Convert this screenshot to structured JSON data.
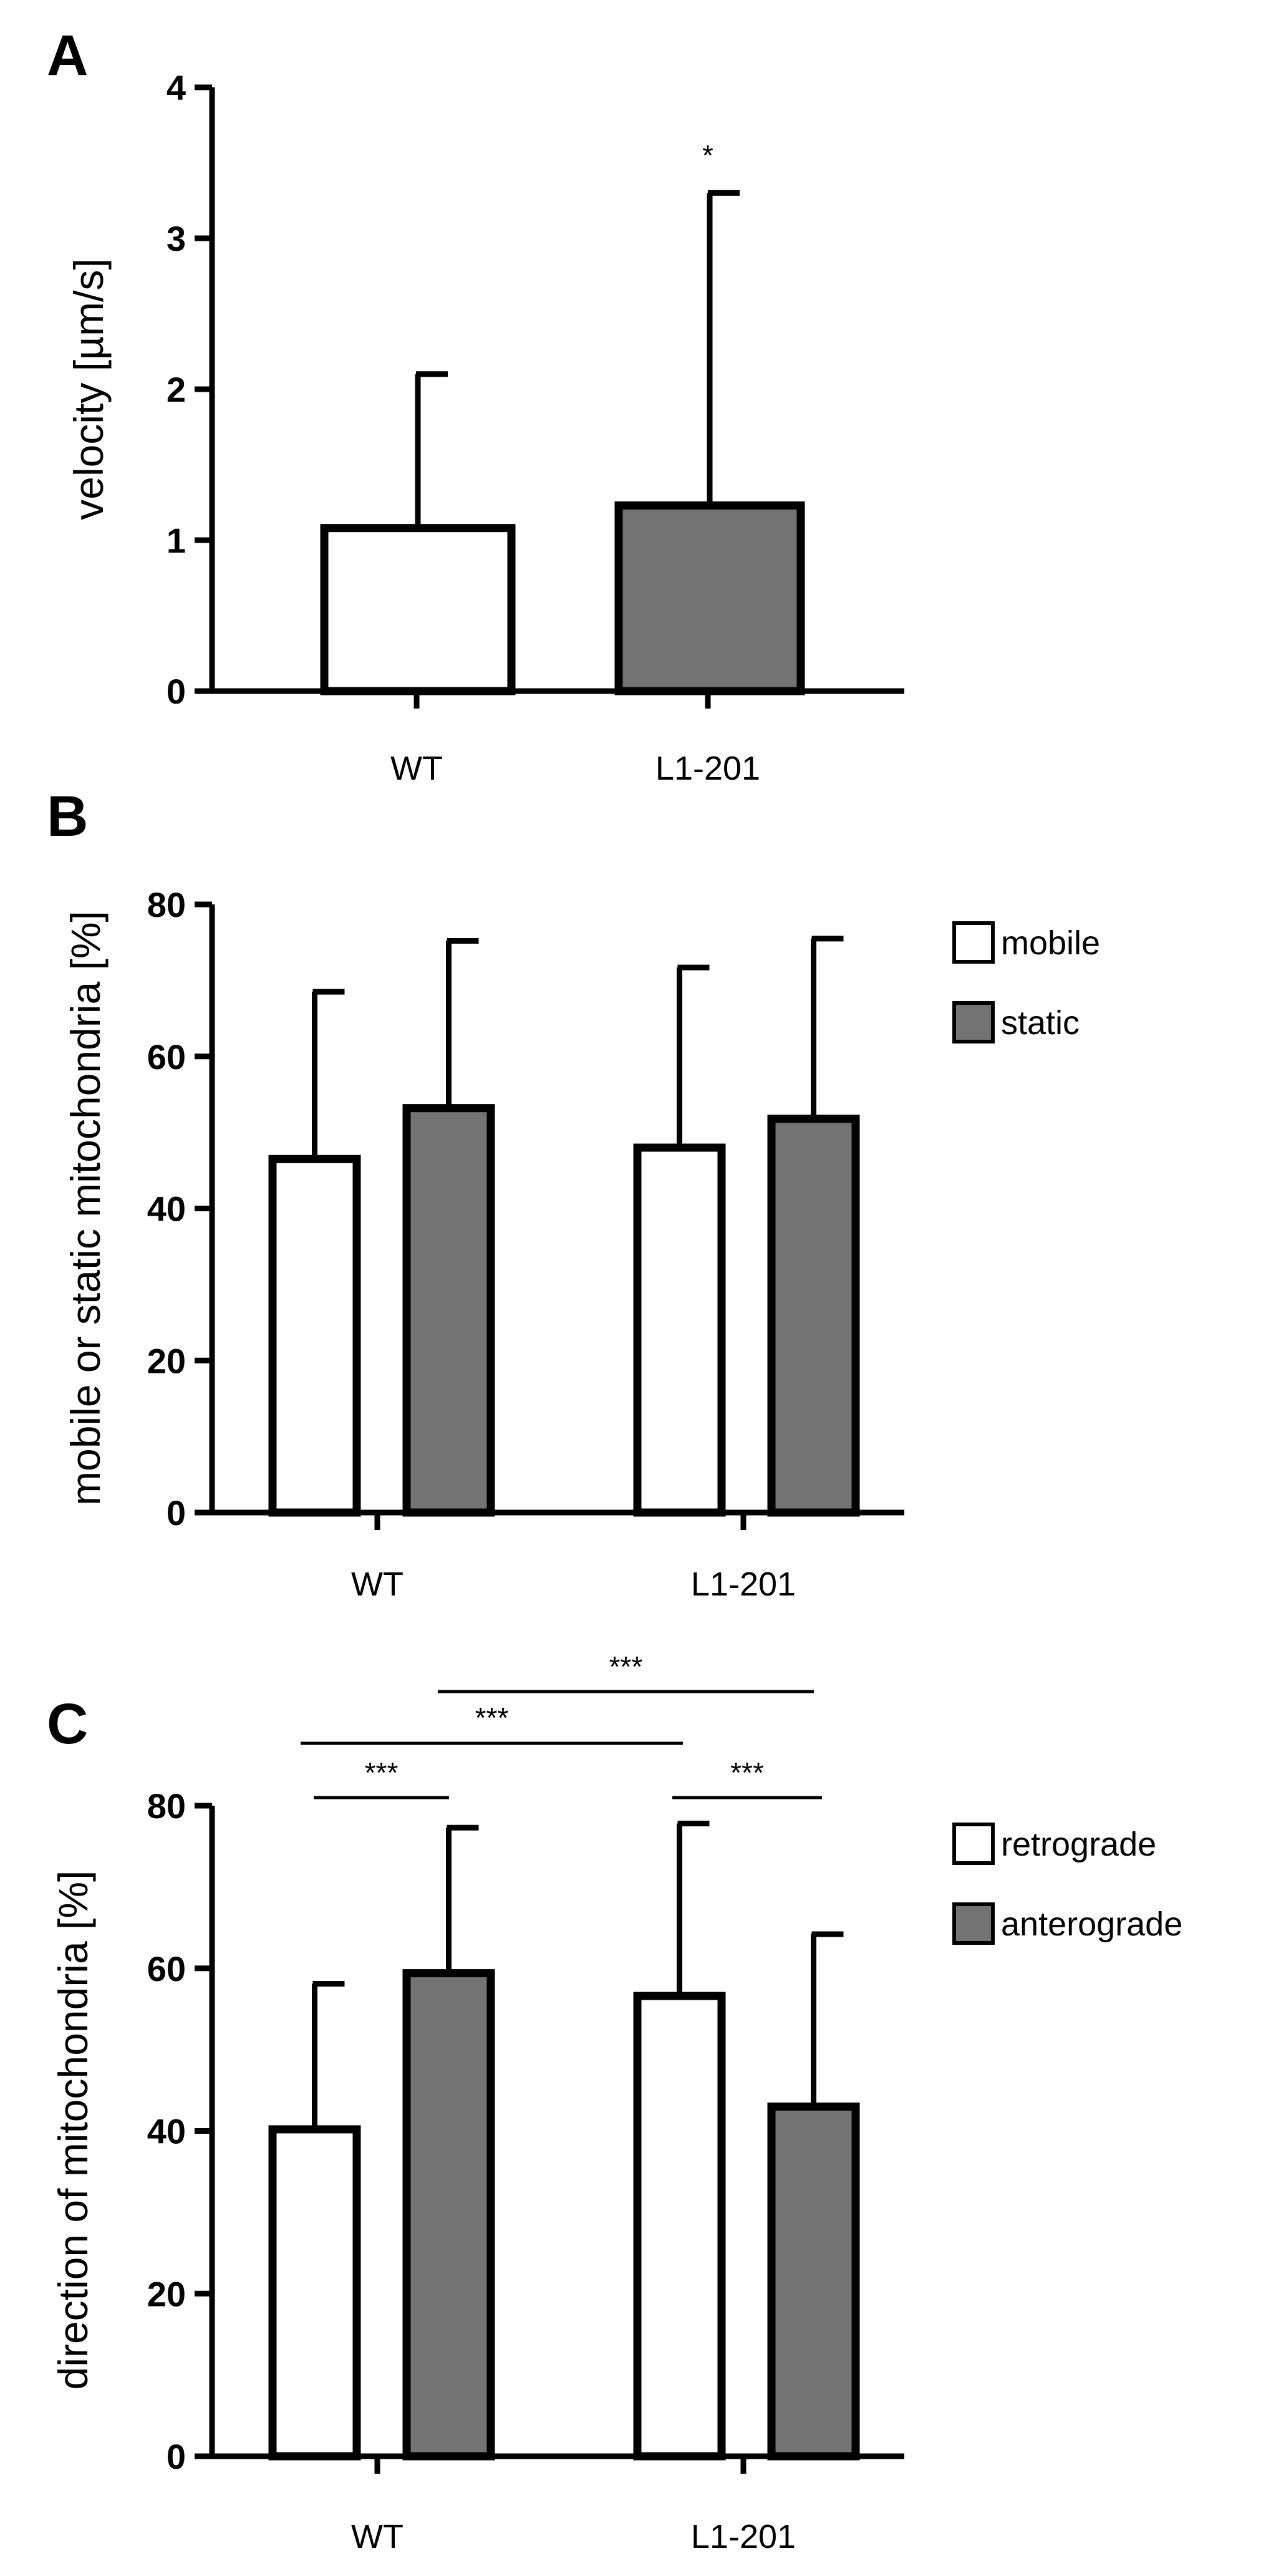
{
  "colors": {
    "bar_light": "#ffffff",
    "bar_dark": "#737373",
    "stroke": "#000000"
  },
  "chart_data": [
    {
      "type": "bar",
      "panel": "A",
      "ylabel": "velocity [µm/s]",
      "ylim": [
        0,
        4
      ],
      "yticks": [
        "0",
        "1",
        "2",
        "3",
        "4"
      ],
      "categories": [
        "WT",
        "L1-201"
      ],
      "series": [
        {
          "name": "",
          "color": "bar_light",
          "values": [
            1.08,
            0
          ],
          "errors": [
            1.02,
            0
          ]
        },
        {
          "name": "",
          "color": "bar_dark",
          "values": [
            0,
            1.23
          ],
          "errors": [
            0,
            2.07
          ]
        }
      ],
      "significance": [
        {
          "label": "*",
          "target": "L1-201"
        }
      ]
    },
    {
      "type": "bar",
      "panel": "B",
      "ylabel": "mobile or static mitochondria [%]",
      "ylim": [
        0,
        80
      ],
      "yticks": [
        "0",
        "20",
        "40",
        "60",
        "80"
      ],
      "categories": [
        "WT",
        "L1-201"
      ],
      "legend_position": "top-right",
      "series": [
        {
          "name": "mobile",
          "color": "bar_light",
          "values": [
            46.5,
            48.0
          ],
          "errors": [
            22.0,
            23.7
          ]
        },
        {
          "name": "static",
          "color": "bar_dark",
          "values": [
            53.2,
            51.8
          ],
          "errors": [
            22.0,
            23.7
          ]
        }
      ]
    },
    {
      "type": "bar",
      "panel": "C",
      "ylabel": "direction of mitochondria [%]",
      "ylim": [
        0,
        80
      ],
      "yticks": [
        "0",
        "20",
        "40",
        "60",
        "80"
      ],
      "categories": [
        "WT",
        "L1-201"
      ],
      "legend_position": "top-right",
      "series": [
        {
          "name": "retrograde",
          "color": "bar_light",
          "values": [
            40.2,
            56.6
          ],
          "errors": [
            17.9,
            21.2
          ]
        },
        {
          "name": "anterograde",
          "color": "bar_dark",
          "values": [
            59.4,
            43.0
          ],
          "errors": [
            17.9,
            21.2
          ]
        }
      ],
      "significance": [
        {
          "label": "***",
          "from": "WT retrograde",
          "to": "WT anterograde"
        },
        {
          "label": "***",
          "from": "WT retrograde",
          "to": "L1-201 retrograde"
        },
        {
          "label": "***",
          "from": "WT anterograde",
          "to": "L1-201 anterograde"
        },
        {
          "label": "***",
          "from": "L1-201 retrograde",
          "to": "L1-201 anterograde"
        }
      ]
    }
  ]
}
